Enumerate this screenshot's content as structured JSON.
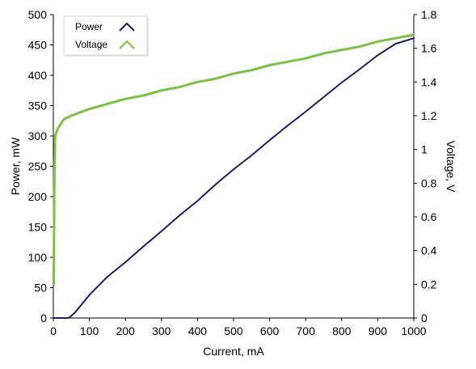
{
  "chart_data": {
    "type": "line",
    "title": "",
    "xlabel": "Current, mA",
    "ylabel_left": "Power, mW",
    "ylabel_right": "Voltage, V",
    "xlim": [
      0,
      1000
    ],
    "ylim_left": [
      0,
      500
    ],
    "ylim_right": [
      0,
      1.8
    ],
    "x_ticks": [
      0,
      100,
      200,
      300,
      400,
      500,
      600,
      700,
      800,
      900,
      1000
    ],
    "y_left_ticks": [
      0,
      50,
      100,
      150,
      200,
      250,
      300,
      350,
      400,
      450,
      500
    ],
    "y_right_ticks": [
      0,
      0.2,
      0.4,
      0.6,
      0.8,
      1,
      1.2,
      1.4,
      1.6,
      1.8
    ],
    "grid": false,
    "legend_position": "top-left",
    "series": [
      {
        "name": "Power",
        "axis": "left",
        "color": "#1a1a66",
        "x": [
          0,
          20,
          40,
          45,
          60,
          100,
          150,
          200,
          250,
          300,
          350,
          400,
          450,
          500,
          550,
          600,
          650,
          700,
          750,
          800,
          850,
          900,
          950,
          1000
        ],
        "y": [
          0,
          0,
          0,
          1,
          9,
          38,
          68,
          92,
          118,
          143,
          169,
          193,
          220,
          245,
          268,
          293,
          317,
          340,
          364,
          388,
          410,
          433,
          452,
          461
        ]
      },
      {
        "name": "Voltage",
        "axis": "right",
        "color": "#7ac143",
        "x": [
          1,
          2,
          3,
          5,
          8,
          12,
          20,
          30,
          50,
          80,
          100,
          150,
          200,
          250,
          300,
          350,
          400,
          450,
          500,
          550,
          600,
          650,
          700,
          750,
          800,
          850,
          900,
          950,
          1000
        ],
        "y": [
          0.2,
          0.5,
          0.85,
          1.08,
          1.1,
          1.12,
          1.15,
          1.18,
          1.2,
          1.225,
          1.24,
          1.27,
          1.3,
          1.32,
          1.35,
          1.37,
          1.4,
          1.42,
          1.45,
          1.47,
          1.5,
          1.52,
          1.54,
          1.57,
          1.59,
          1.61,
          1.64,
          1.66,
          1.68
        ]
      }
    ]
  }
}
